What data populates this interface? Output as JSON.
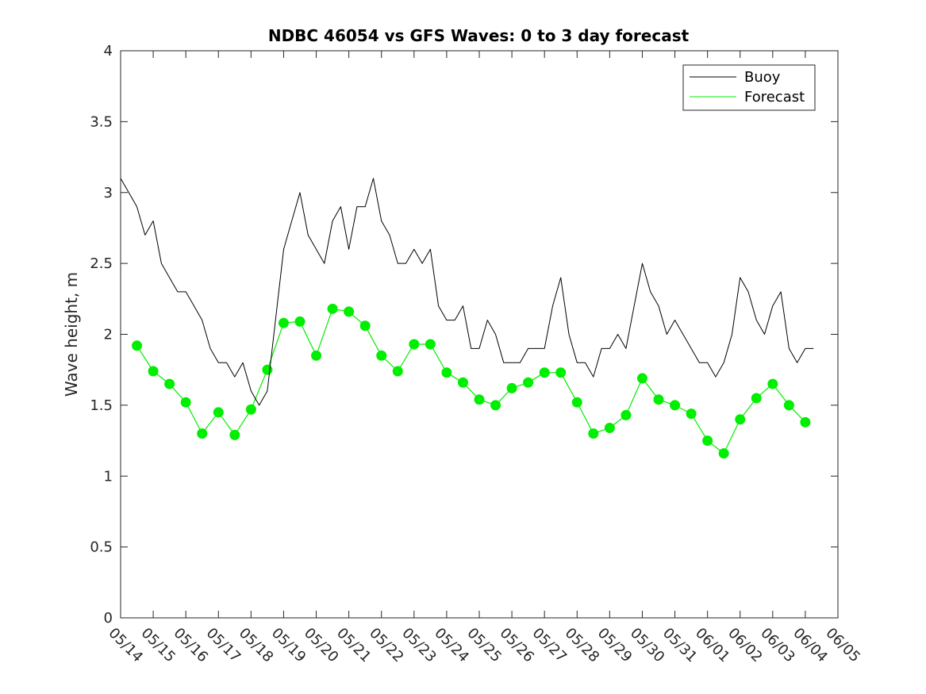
{
  "chart_data": {
    "type": "line",
    "title": "NDBC 46054 vs GFS Waves: 0 to 3 day forecast",
    "xlabel": "",
    "ylabel": "Wave height, m",
    "x_tick_labels": [
      "05/14",
      "05/15",
      "05/16",
      "05/17",
      "05/18",
      "05/19",
      "05/20",
      "05/21",
      "05/22",
      "05/23",
      "05/24",
      "05/25",
      "05/26",
      "05/27",
      "05/28",
      "05/29",
      "05/30",
      "05/31",
      "06/01",
      "06/02",
      "06/03",
      "06/04",
      "06/05"
    ],
    "y_ticks": [
      0,
      0.5,
      1,
      1.5,
      2,
      2.5,
      3,
      3.5,
      4
    ],
    "y_tick_labels": [
      "0",
      "0.5",
      "1",
      "1.5",
      "2",
      "2.5",
      "3",
      "3.5",
      "4"
    ],
    "xlim": [
      "05/14",
      "06/05"
    ],
    "ylim": [
      0,
      4
    ],
    "grid": false,
    "legend": {
      "position": "top-right",
      "entries": [
        "Buoy",
        "Forecast"
      ]
    },
    "colors": {
      "buoy": "#000000",
      "forecast": "#00ee00"
    },
    "series": [
      {
        "name": "Buoy",
        "x": [
          "05/14 00:00",
          "05/14 06:00",
          "05/14 12:00",
          "05/14 18:00",
          "05/15 00:00",
          "05/15 06:00",
          "05/15 12:00",
          "05/15 18:00",
          "05/16 00:00",
          "05/16 06:00",
          "05/16 12:00",
          "05/16 18:00",
          "05/17 00:00",
          "05/17 06:00",
          "05/17 12:00",
          "05/17 18:00",
          "05/18 00:00",
          "05/18 06:00",
          "05/18 12:00",
          "05/18 18:00",
          "05/19 00:00",
          "05/19 06:00",
          "05/19 12:00",
          "05/19 18:00",
          "05/20 00:00",
          "05/20 06:00",
          "05/20 12:00",
          "05/20 18:00",
          "05/21 00:00",
          "05/21 06:00",
          "05/21 12:00",
          "05/21 18:00",
          "05/22 00:00",
          "05/22 06:00",
          "05/22 12:00",
          "05/22 18:00",
          "05/23 00:00",
          "05/23 06:00",
          "05/23 12:00",
          "05/23 18:00",
          "05/24 00:00",
          "05/24 06:00",
          "05/24 12:00",
          "05/24 18:00",
          "05/25 00:00",
          "05/25 06:00",
          "05/25 12:00",
          "05/25 18:00",
          "05/26 00:00",
          "05/26 06:00",
          "05/26 12:00",
          "05/26 18:00",
          "05/27 00:00",
          "05/27 06:00",
          "05/27 12:00",
          "05/27 18:00",
          "05/28 00:00",
          "05/28 06:00",
          "05/28 12:00",
          "05/28 18:00",
          "05/29 00:00",
          "05/29 06:00",
          "05/29 12:00",
          "05/29 18:00",
          "05/30 00:00",
          "05/30 06:00",
          "05/30 12:00",
          "05/30 18:00",
          "05/31 00:00",
          "05/31 06:00",
          "05/31 12:00",
          "05/31 18:00",
          "06/01 00:00",
          "06/01 06:00",
          "06/01 12:00",
          "06/01 18:00",
          "06/02 00:00",
          "06/02 06:00",
          "06/02 12:00",
          "06/02 18:00",
          "06/03 00:00",
          "06/03 06:00",
          "06/03 12:00",
          "06/03 18:00",
          "06/04 00:00",
          "06/04 06:00"
        ],
        "values": [
          3.1,
          3.0,
          2.9,
          2.7,
          2.8,
          2.5,
          2.4,
          2.3,
          2.3,
          2.2,
          2.1,
          1.9,
          1.8,
          1.8,
          1.7,
          1.8,
          1.6,
          1.5,
          1.6,
          2.1,
          2.6,
          2.8,
          3.0,
          2.7,
          2.6,
          2.5,
          2.8,
          2.9,
          2.6,
          2.9,
          2.9,
          3.1,
          2.8,
          2.7,
          2.5,
          2.5,
          2.6,
          2.5,
          2.6,
          2.2,
          2.1,
          2.1,
          2.2,
          1.9,
          1.9,
          2.1,
          2.0,
          1.8,
          1.8,
          1.8,
          1.9,
          1.9,
          1.9,
          2.2,
          2.4,
          2.0,
          1.8,
          1.8,
          1.7,
          1.9,
          1.9,
          2.0,
          1.9,
          2.2,
          2.5,
          2.3,
          2.2,
          2.0,
          2.1,
          2.0,
          1.9,
          1.8,
          1.8,
          1.7,
          1.8,
          2.0,
          2.4,
          2.3,
          2.1,
          2.0,
          2.2,
          2.3,
          1.9,
          1.8,
          1.9,
          1.9
        ]
      },
      {
        "name": "Forecast",
        "x": [
          "05/14 12:00",
          "05/15 00:00",
          "05/15 12:00",
          "05/16 00:00",
          "05/16 12:00",
          "05/17 00:00",
          "05/17 12:00",
          "05/18 00:00",
          "05/18 12:00",
          "05/19 00:00",
          "05/19 12:00",
          "05/20 00:00",
          "05/20 12:00",
          "05/21 00:00",
          "05/21 12:00",
          "05/22 00:00",
          "05/22 12:00",
          "05/23 00:00",
          "05/23 12:00",
          "05/24 00:00",
          "05/24 12:00",
          "05/25 00:00",
          "05/25 12:00",
          "05/26 00:00",
          "05/26 12:00",
          "05/27 00:00",
          "05/27 12:00",
          "05/28 00:00",
          "05/28 12:00",
          "05/29 00:00",
          "05/29 12:00",
          "05/30 00:00",
          "05/30 12:00",
          "05/31 00:00",
          "05/31 12:00",
          "06/01 00:00",
          "06/01 12:00",
          "06/02 00:00",
          "06/02 12:00",
          "06/03 00:00",
          "06/03 12:00",
          "06/04 00:00"
        ],
        "values": [
          1.92,
          1.74,
          1.65,
          1.52,
          1.3,
          1.45,
          1.29,
          1.47,
          1.75,
          2.08,
          2.09,
          1.85,
          2.18,
          2.16,
          2.06,
          1.85,
          1.74,
          1.93,
          1.93,
          1.73,
          1.66,
          1.54,
          1.5,
          1.62,
          1.66,
          1.73,
          1.73,
          1.52,
          1.3,
          1.34,
          1.43,
          1.69,
          1.54,
          1.5,
          1.44,
          1.25,
          1.16,
          1.4,
          1.55,
          1.65,
          1.5,
          1.38
        ]
      }
    ]
  }
}
